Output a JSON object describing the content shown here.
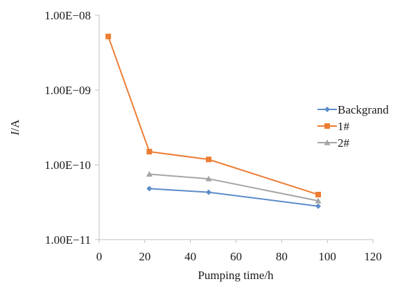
{
  "chart_data": {
    "type": "line",
    "xlabel": "Pumping time/h",
    "ylabel_italic": "I",
    "ylabel_rest": "/A",
    "x_scale": "linear",
    "y_scale": "log",
    "xlim": [
      0,
      120
    ],
    "ylim": [
      1e-11,
      1e-08
    ],
    "x_ticks": [
      0,
      20,
      40,
      60,
      80,
      100,
      120
    ],
    "x_tick_labels": [
      "0",
      "20",
      "40",
      "60",
      "80",
      "100",
      "120"
    ],
    "y_ticks": [
      1e-11,
      1e-10,
      1e-09,
      1e-08
    ],
    "y_tick_labels": [
      "1.00E−11",
      "1.00E−10",
      "1.00E−09",
      "1.00E−08"
    ],
    "grid": false,
    "legend_position": "right",
    "series": [
      {
        "name": "Backgrand",
        "color": "#5b8cc8",
        "marker": "diamond",
        "points": [
          [
            22,
            4.8e-11
          ],
          [
            48,
            4.3e-11
          ],
          [
            96,
            2.8e-11
          ]
        ]
      },
      {
        "name": "1#",
        "color": "#ec7d33",
        "marker": "square",
        "points": [
          [
            4,
            5.2e-09
          ],
          [
            22,
            1.5e-10
          ],
          [
            48,
            1.18e-10
          ],
          [
            96,
            4e-11
          ]
        ]
      },
      {
        "name": "2#",
        "color": "#a5a5a5",
        "marker": "triangle",
        "points": [
          [
            22,
            7.5e-11
          ],
          [
            48,
            6.5e-11
          ],
          [
            96,
            3.3e-11
          ]
        ]
      }
    ]
  }
}
